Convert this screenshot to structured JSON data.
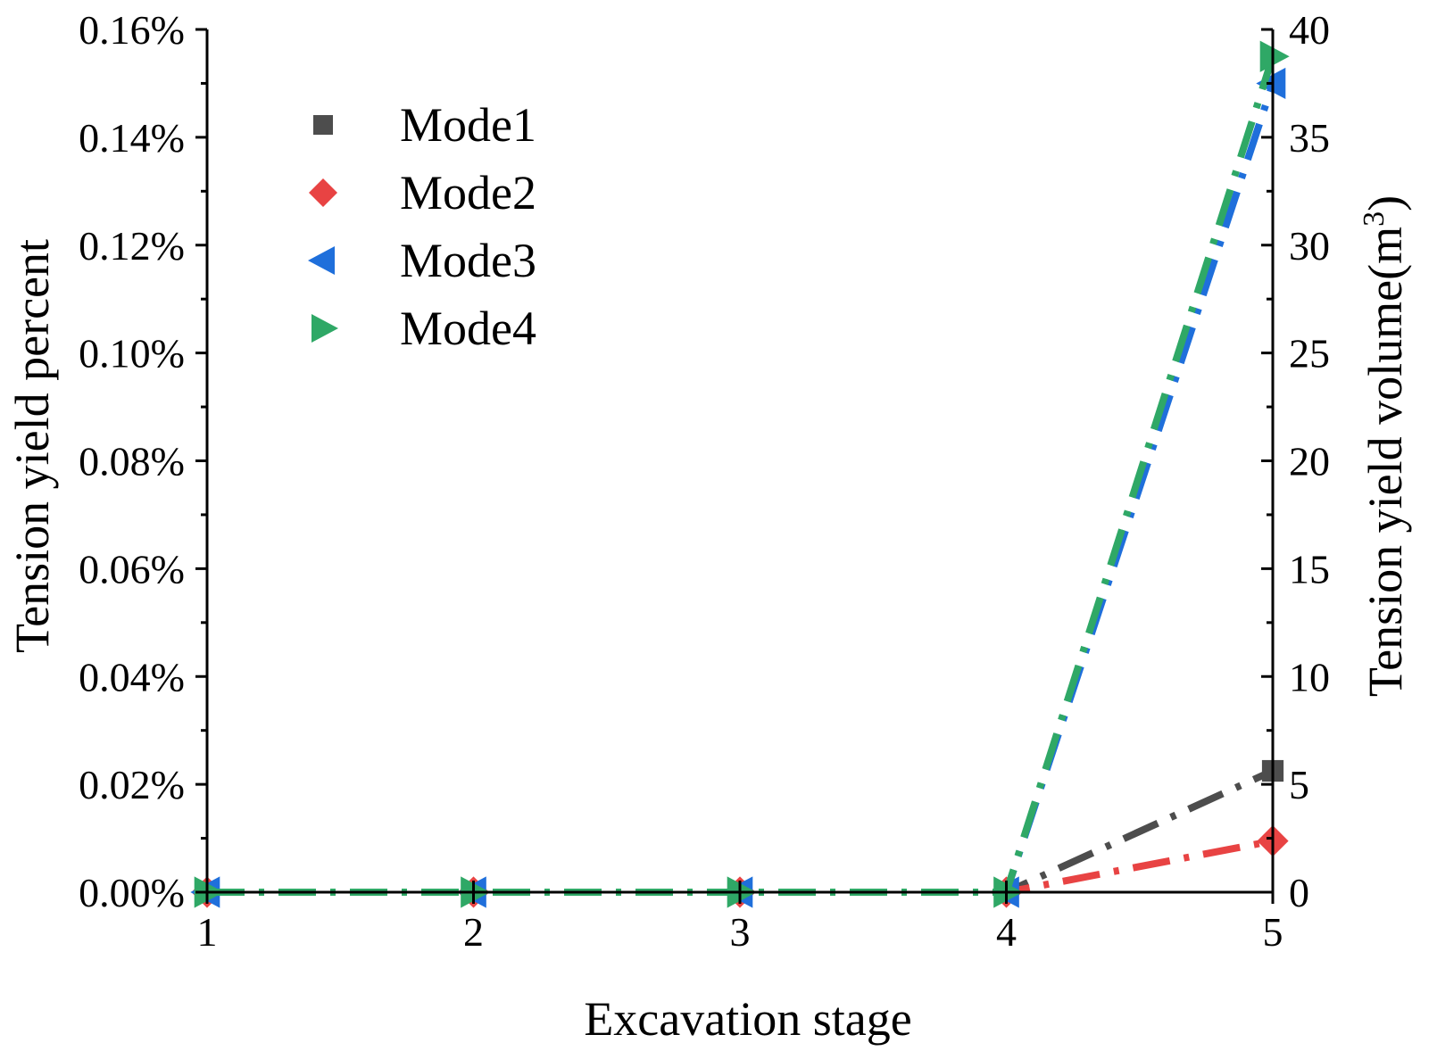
{
  "chart_data": {
    "type": "line",
    "title": "",
    "xlabel": "Excavation stage",
    "ylabel_left": "Tension yield percent",
    "ylabel_right": {
      "main": "Tension yield volume(m",
      "sup": "3",
      "close": ")"
    },
    "categories": [
      "1",
      "2",
      "3",
      "4",
      "5"
    ],
    "x": [
      1,
      2,
      3,
      4,
      5
    ],
    "xlim": [
      1,
      5
    ],
    "ylim_left": [
      0,
      0.16
    ],
    "ylim_right": [
      0,
      40
    ],
    "yticks_left": [
      "0.00%",
      "0.02%",
      "0.04%",
      "0.06%",
      "0.08%",
      "0.10%",
      "0.12%",
      "0.14%",
      "0.16%"
    ],
    "yticks_right": [
      "0",
      "5",
      "10",
      "15",
      "20",
      "25",
      "30",
      "35",
      "40"
    ],
    "grid": false,
    "legend_position": "top-left",
    "series": [
      {
        "name": "Mode1",
        "marker": "square",
        "color": "#4d4d4d",
        "values": [
          0,
          0,
          0,
          0,
          0.0225
        ]
      },
      {
        "name": "Mode2",
        "marker": "diamond",
        "color": "#e84343",
        "values": [
          0,
          0,
          0,
          0,
          0.0095
        ]
      },
      {
        "name": "Mode3",
        "marker": "triangle-left",
        "color": "#1f6fdb",
        "values": [
          0,
          0,
          0,
          0,
          0.15
        ]
      },
      {
        "name": "Mode4",
        "marker": "triangle-right",
        "color": "#2fa866",
        "values": [
          0,
          0,
          0,
          0,
          0.155
        ]
      }
    ]
  }
}
